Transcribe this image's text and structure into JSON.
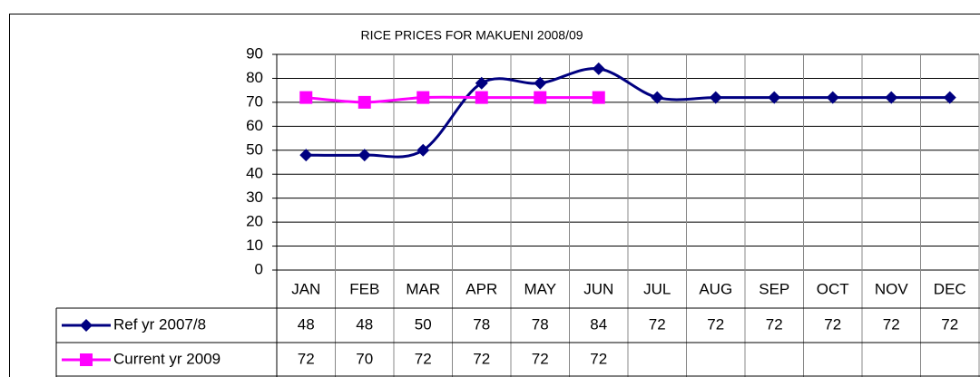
{
  "chart_data": {
    "type": "line",
    "title": "RICE PRICES FOR MAKUENI 2008/09",
    "categories": [
      "JAN",
      "FEB",
      "MAR",
      "APR",
      "MAY",
      "JUN",
      "JUL",
      "AUG",
      "SEP",
      "OCT",
      "NOV",
      "DEC"
    ],
    "series": [
      {
        "name": "Ref yr 2007/8",
        "color": "#000080",
        "marker": "diamond",
        "values": [
          48,
          48,
          50,
          78,
          78,
          84,
          72,
          72,
          72,
          72,
          72,
          72
        ]
      },
      {
        "name": "Current yr 2009",
        "color": "#ff00ff",
        "marker": "square",
        "values": [
          72,
          70,
          72,
          72,
          72,
          72,
          null,
          null,
          null,
          null,
          null,
          null
        ]
      }
    ],
    "ylim": [
      0,
      90
    ],
    "yticks": [
      0,
      10,
      20,
      30,
      40,
      50,
      60,
      70,
      80,
      90
    ],
    "grid": true,
    "smooth": true,
    "data_table": true
  }
}
